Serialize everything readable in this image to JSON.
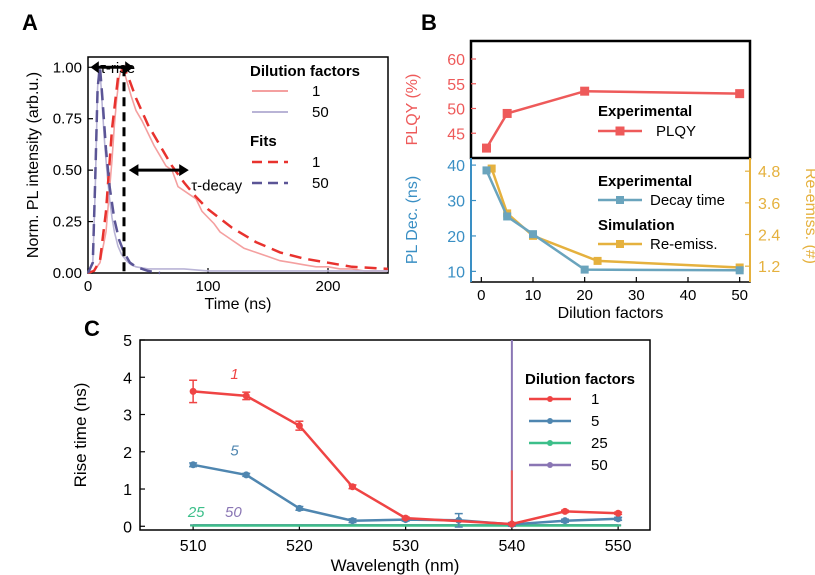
{
  "panel_labels": {
    "a": "A",
    "b": "B",
    "c": "C"
  },
  "chart_data": [
    {
      "id": "A",
      "type": "line",
      "xlabel": "Time (ns)",
      "ylabel": "Norm. PL intensity (arb.u.)",
      "xlim": [
        0,
        250
      ],
      "ylim": [
        0,
        1.05
      ],
      "xticks": [
        "0",
        "100",
        "200"
      ],
      "yticks": [
        "0.00",
        "0.25",
        "0.50",
        "0.75",
        "1.00"
      ],
      "legend_title_1": "Dilution factors",
      "legend_title_2": "Fits",
      "annotations": {
        "rise": "τ-rise",
        "decay": "τ-decay"
      },
      "series": [
        {
          "name": "1",
          "kind": "data",
          "color": "#f4a0a0",
          "x": [
            0,
            5,
            10,
            15,
            20,
            22,
            24,
            26,
            28,
            30,
            33,
            36,
            40,
            45,
            50,
            55,
            60,
            65,
            70,
            75,
            80,
            85,
            90,
            95,
            100,
            105,
            110,
            115,
            120,
            125,
            130,
            140,
            150,
            160,
            170,
            180,
            190,
            200,
            210,
            220,
            230,
            240,
            250
          ],
          "y": [
            0,
            0.01,
            0.05,
            0.2,
            0.55,
            0.72,
            0.85,
            0.95,
            1.0,
            0.98,
            0.92,
            0.86,
            0.79,
            0.74,
            0.68,
            0.62,
            0.57,
            0.52,
            0.5,
            0.42,
            0.4,
            0.38,
            0.36,
            0.3,
            0.27,
            0.24,
            0.2,
            0.18,
            0.16,
            0.14,
            0.12,
            0.1,
            0.08,
            0.06,
            0.05,
            0.04,
            0.03,
            0.03,
            0.02,
            0.02,
            0.01,
            0.01,
            0.01
          ]
        },
        {
          "name": "50",
          "kind": "data",
          "color": "#b9b4d6",
          "x": [
            0,
            4,
            6,
            8,
            9,
            10,
            11,
            12,
            14,
            16,
            18,
            20,
            22,
            25,
            28,
            32,
            36,
            40,
            50,
            60,
            80,
            100,
            150,
            200,
            250
          ],
          "y": [
            0,
            0.05,
            0.4,
            0.9,
            1.0,
            0.98,
            0.9,
            0.8,
            0.62,
            0.48,
            0.36,
            0.27,
            0.2,
            0.13,
            0.09,
            0.06,
            0.04,
            0.03,
            0.02,
            0.02,
            0.02,
            0.01,
            0.01,
            0.01,
            0.01
          ]
        },
        {
          "name": "1",
          "kind": "fit",
          "color": "#e8322e",
          "x": [
            0,
            5,
            10,
            15,
            20,
            25,
            30,
            35,
            40,
            50,
            60,
            70,
            80,
            90,
            100,
            120,
            140,
            160,
            180,
            200,
            220,
            250
          ],
          "y": [
            0,
            0.01,
            0.06,
            0.3,
            0.7,
            0.95,
            1.0,
            0.93,
            0.85,
            0.72,
            0.62,
            0.52,
            0.44,
            0.37,
            0.31,
            0.22,
            0.15,
            0.1,
            0.07,
            0.05,
            0.03,
            0.02
          ]
        },
        {
          "name": "50",
          "kind": "fit",
          "color": "#5b5596",
          "x": [
            0,
            4,
            6,
            8,
            10,
            12,
            15,
            18,
            22,
            26,
            30,
            35,
            40,
            50,
            60
          ],
          "y": [
            0,
            0.05,
            0.45,
            0.9,
            1.0,
            0.85,
            0.6,
            0.42,
            0.26,
            0.16,
            0.1,
            0.05,
            0.03,
            0.01,
            0.0
          ]
        }
      ],
      "markers": {
        "rise_x": 30
      }
    },
    {
      "id": "B-top",
      "type": "line",
      "ylabel": "PLQY (%)",
      "ylim": [
        40,
        60
      ],
      "yticks": [
        "45",
        "50",
        "55",
        "60"
      ],
      "legend_title": "Experimental",
      "series": [
        {
          "name": "PLQY",
          "color": "#ee5a5a",
          "x": [
            1,
            5,
            20,
            50
          ],
          "y": [
            42,
            49,
            53.5,
            53
          ]
        }
      ]
    },
    {
      "id": "B-bottom",
      "type": "line",
      "xlabel": "Dilution factors",
      "ylabel": "PL Dec. (ns)",
      "ylabel_right": "Re-emiss. (#)",
      "xlim": [
        -2,
        52
      ],
      "ylim": [
        7,
        42
      ],
      "ylim_right": [
        0.6,
        5.3
      ],
      "xticks": [
        "0",
        "10",
        "20",
        "30",
        "40",
        "50"
      ],
      "yticks": [
        "10",
        "20",
        "30",
        "40"
      ],
      "yticks_right": [
        "1.2",
        "2.4",
        "3.6",
        "4.8"
      ],
      "legend_title_1": "Experimental",
      "legend_title_2": "Simulation",
      "series": [
        {
          "name": "Decay time",
          "color": "#6aa4bd",
          "axis": "left",
          "x": [
            1,
            5,
            10,
            20,
            50
          ],
          "y": [
            38.5,
            25.5,
            20.5,
            10.5,
            10.3
          ]
        },
        {
          "name": "Re-emiss.",
          "color": "#e5b13e",
          "axis": "right",
          "x": [
            2,
            5,
            10,
            22.5,
            50
          ],
          "y": [
            4.9,
            3.2,
            2.35,
            1.4,
            1.15
          ]
        }
      ]
    },
    {
      "id": "C",
      "type": "line",
      "xlabel": "Wavelength (nm)",
      "ylabel": "Rise time (ns)",
      "xlim": [
        505,
        553
      ],
      "ylim": [
        -0.1,
        5
      ],
      "xticks": [
        "510",
        "520",
        "530",
        "540",
        "550"
      ],
      "yticks": [
        "0",
        "1",
        "2",
        "3",
        "4",
        "5"
      ],
      "legend_title": "Dilution factors",
      "series": [
        {
          "name": "1",
          "label": "1",
          "color": "#ef4444",
          "x": [
            510,
            515,
            520,
            525,
            530,
            540,
            545,
            550
          ],
          "y": [
            3.62,
            3.5,
            2.7,
            1.06,
            0.22,
            0.06,
            0.4,
            0.35
          ],
          "err": [
            0.3,
            0.1,
            0.12,
            0.05,
            0.03,
            0.02,
            0.03,
            0.03
          ]
        },
        {
          "name": "5",
          "label": "5",
          "color": "#4f86b0",
          "x": [
            510,
            515,
            520,
            525,
            530,
            535,
            540,
            545,
            550
          ],
          "y": [
            1.65,
            1.38,
            0.48,
            0.15,
            0.18,
            0.16,
            0.05,
            0.15,
            0.2
          ],
          "err": [
            0.05,
            0.04,
            0.05,
            0.05,
            0.04,
            0.18,
            0.05,
            0.04,
            0.04
          ]
        },
        {
          "name": "25",
          "label": "25",
          "color": "#3cbf8a",
          "x": [
            510,
            515,
            520,
            525,
            530,
            535,
            540,
            545,
            550
          ],
          "y": [
            0.02,
            0.02,
            0.02,
            0.02,
            0.02,
            0.02,
            0.02,
            0.02,
            0.02
          ],
          "err": [
            0,
            0,
            0,
            0,
            0,
            0,
            0,
            0,
            0
          ]
        },
        {
          "name": "50",
          "label": "50",
          "color": "#8a76b4",
          "x": [
            510,
            515,
            520,
            525,
            530,
            535,
            540,
            545,
            550
          ],
          "y": [
            0.03,
            0.03,
            0.03,
            0.03,
            0.03,
            0.03,
            0.03,
            0.03,
            0.03
          ],
          "err": [
            0,
            0,
            0,
            0,
            0,
            0,
            0,
            0,
            0
          ]
        }
      ],
      "spike": {
        "x": 540,
        "ymax": 5.2,
        "color": "#8a76b4",
        "accent": "#e85a5a"
      }
    }
  ]
}
